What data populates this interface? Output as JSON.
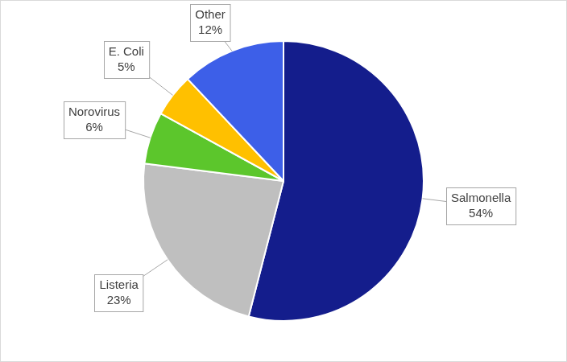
{
  "chart_data": {
    "type": "pie",
    "categories": [
      "Salmonella",
      "Listeria",
      "Norovirus",
      "E. Coli",
      "Other"
    ],
    "values": [
      54,
      23,
      6,
      5,
      12
    ],
    "value_labels": [
      "54%",
      "23%",
      "6%",
      "5%",
      "12%"
    ],
    "colors": [
      "#141d8c",
      "#bfbfbf",
      "#5cc62c",
      "#ffc000",
      "#3d5fe8"
    ],
    "data_labels": true
  }
}
